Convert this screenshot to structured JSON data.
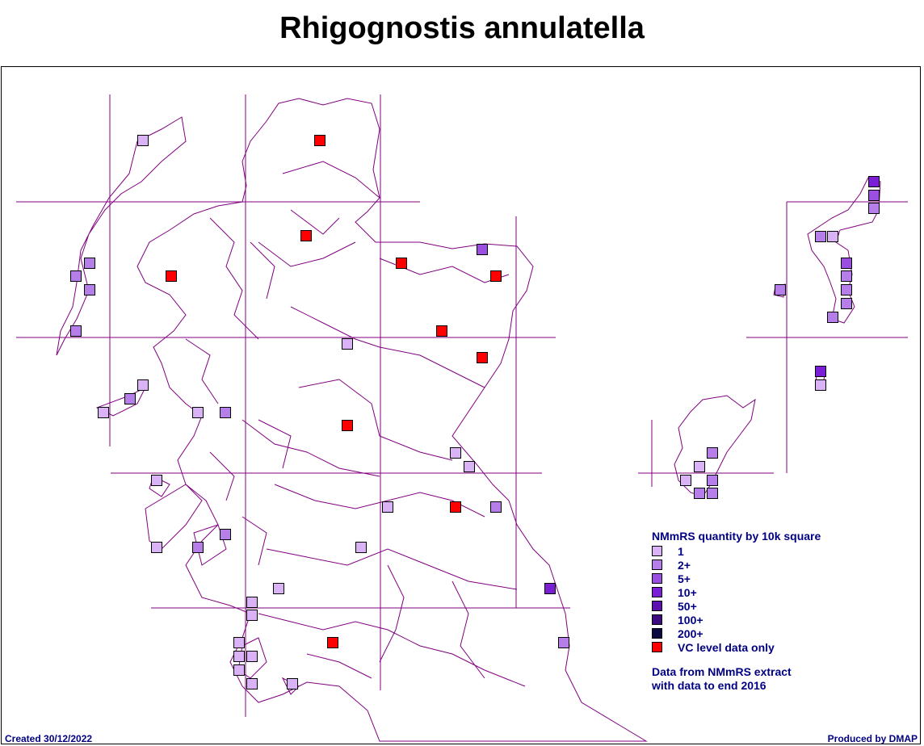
{
  "title": "Rhigognostis annulatella",
  "legend": {
    "title": "NMmRS quantity by 10k square",
    "items": [
      {
        "label": "1",
        "color": "#d9b3f5"
      },
      {
        "label": "2+",
        "color": "#b57ee8"
      },
      {
        "label": "5+",
        "color": "#9a4fe0"
      },
      {
        "label": "10+",
        "color": "#7a1fd6"
      },
      {
        "label": "50+",
        "color": "#5e0fb0"
      },
      {
        "label": "100+",
        "color": "#3d0a80"
      },
      {
        "label": "200+",
        "color": "#0a0a40"
      },
      {
        "label": "VC level data only",
        "color": "#ff0000"
      }
    ]
  },
  "note_line1": "Data from NMmRS extract",
  "note_line2": "with data to end 2016",
  "created": "Created 30/12/2022",
  "produced": "Produced by DMAP",
  "colors": {
    "boundary": "#800080",
    "grid": "#800080"
  },
  "records": [
    {
      "level": "1",
      "count": 20
    },
    {
      "level": "2+",
      "count": 22
    },
    {
      "level": "5+",
      "count": 5
    },
    {
      "level": "10+",
      "count": 2
    },
    {
      "level": "VC level data only",
      "count": 10
    }
  ]
}
